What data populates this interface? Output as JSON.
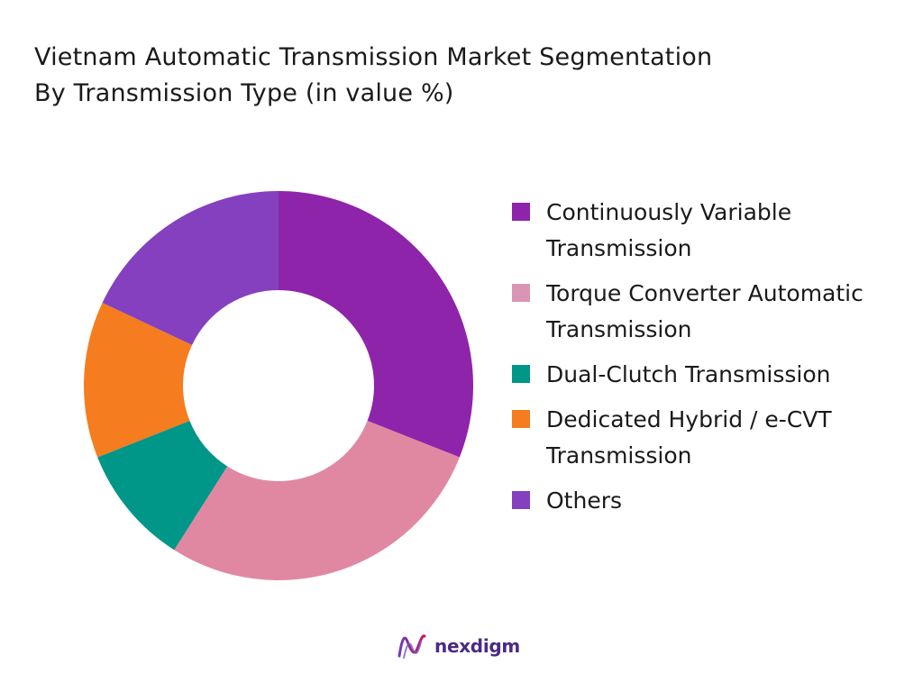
{
  "title_line1": "Vietnam Automatic Transmission Market Segmentation",
  "title_line2": "By Transmission Type (in value %)",
  "chart_data": {
    "type": "pie",
    "donut": true,
    "title": "Vietnam Automatic Transmission Market Segmentation By Transmission Type (in value %)",
    "legend_position": "right",
    "slices": [
      {
        "name": "Continuously Variable Transmission",
        "value": 31,
        "color": "#8E24AA"
      },
      {
        "name": "Torque Converter Automatic Transmission",
        "value": 28,
        "color": "#E088A2"
      },
      {
        "name": "Dual-Clutch Transmission",
        "value": 10,
        "color": "#009688"
      },
      {
        "name": "Dedicated Hybrid / e-CVT Transmission",
        "value": 13,
        "color": "#F57C1F"
      },
      {
        "name": "Others",
        "value": 18,
        "color": "#8440BE"
      }
    ]
  },
  "legend": [
    {
      "label": "Continuously Variable Transmission",
      "color": "#8E24AA"
    },
    {
      "label": "Torque Converter Automatic Transmission",
      "color": "#D996B4"
    },
    {
      "label": "Dual-Clutch Transmission",
      "color": "#009688"
    },
    {
      "label": "Dedicated Hybrid / e-CVT Transmission",
      "color": "#F57C1F"
    },
    {
      "label": "Others",
      "color": "#8440BE"
    }
  ],
  "logo": {
    "text": "nexdigm",
    "icon": "nexdigm-logo-icon",
    "color": "#4B2A83"
  }
}
